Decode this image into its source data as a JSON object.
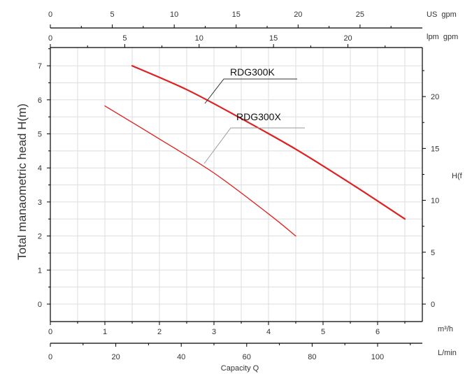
{
  "chart_data": {
    "type": "line",
    "xlabel": "Capacity Q",
    "ylabel": "Total manaometric head H(m)",
    "xlim": [
      0,
      7
    ],
    "ylim": [
      -0.5,
      7.5
    ],
    "grid": true,
    "axes": {
      "bottom_m3h": {
        "unit": "m³/h",
        "ticks": [
          "0",
          "1",
          "2",
          "3",
          "4",
          "5",
          "6"
        ],
        "range": [
          0,
          7
        ]
      },
      "bottom_lmin": {
        "unit": "L/min",
        "ticks": [
          "0",
          "20",
          "40",
          "60",
          "80",
          "100"
        ],
        "range": [
          0,
          116.67
        ]
      },
      "top_usgpm": {
        "unit": "US  gpm",
        "ticks": [
          "0",
          "5",
          "10",
          "15",
          "20",
          "25"
        ],
        "range": [
          0,
          30.82
        ]
      },
      "top_lpmgpm": {
        "unit": "lpm  gpm",
        "ticks": [
          "0",
          "5",
          "10",
          "15",
          "20"
        ],
        "range": [
          0,
          25.66
        ]
      },
      "left_m": {
        "ticks": [
          "0",
          "1",
          "2",
          "3",
          "4",
          "5",
          "6",
          "7"
        ]
      },
      "right_ft": {
        "unit": "H(f",
        "ticks": [
          "0",
          "5",
          "10",
          "15",
          "20"
        ],
        "range": [
          -1.64,
          24.6
        ]
      }
    },
    "series": [
      {
        "name": "RDG300K",
        "color": "#e02020",
        "x": [
          1.5,
          2.5,
          3.5,
          4.5,
          5.5,
          6.5
        ],
        "y": [
          7.0,
          6.3,
          5.45,
          4.55,
          3.55,
          2.5
        ]
      },
      {
        "name": "RDG300X",
        "color": "#e02020",
        "x": [
          1.0,
          2.0,
          3.0,
          4.0,
          4.5
        ],
        "y": [
          5.82,
          4.85,
          3.85,
          2.65,
          2.0
        ]
      }
    ]
  },
  "colors": {
    "axis": "#000000",
    "grid": "#dddddd",
    "curve": "#e02020",
    "leader": "#9a9a9a"
  }
}
